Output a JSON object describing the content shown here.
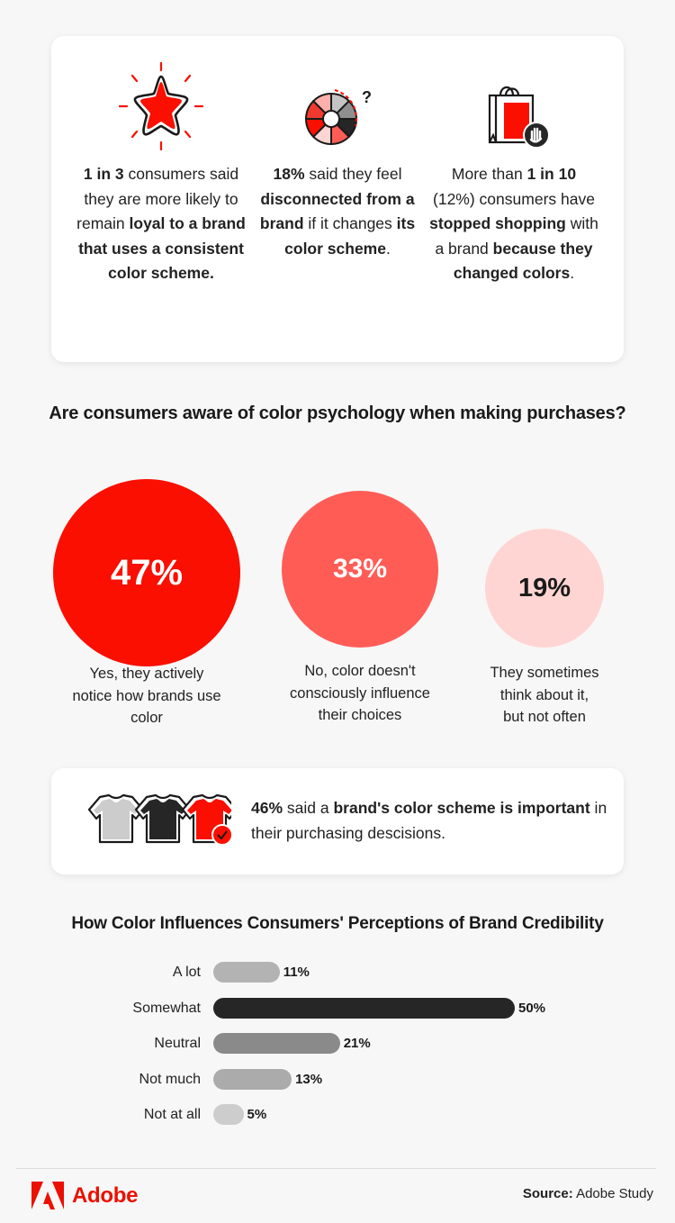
{
  "stats": [
    {
      "icon": "star-icon",
      "segments": [
        {
          "text": "1 in 3",
          "bold": true
        },
        {
          "text": " consumers said they are more likely to remain ",
          "bold": false
        },
        {
          "text": "loyal to a brand that uses a consistent color scheme.",
          "bold": true
        }
      ]
    },
    {
      "icon": "color-wheel-question-icon",
      "segments": [
        {
          "text": "18%",
          "bold": true
        },
        {
          "text": " said they feel ",
          "bold": false
        },
        {
          "text": "disconnected from a brand",
          "bold": true
        },
        {
          "text": " if it changes ",
          "bold": false
        },
        {
          "text": "its color scheme",
          "bold": true
        },
        {
          "text": ".",
          "bold": false
        }
      ]
    },
    {
      "icon": "shopping-bag-stop-icon",
      "segments": [
        {
          "text": "More than ",
          "bold": false
        },
        {
          "text": "1 in 10",
          "bold": true
        },
        {
          "text": " (12%) consumers have ",
          "bold": false
        },
        {
          "text": "stopped shopping",
          "bold": true
        },
        {
          "text": " with a brand ",
          "bold": false
        },
        {
          "text": "because they changed colors",
          "bold": true
        },
        {
          "text": ".",
          "bold": false
        }
      ]
    }
  ],
  "awareness": {
    "title": "Are consumers aware of color psychology when making purchases?",
    "bubbles": [
      {
        "value": "47%",
        "label": "Yes, they actively notice how brands use color",
        "color": "#fa0f00",
        "text_color": "#ffffff"
      },
      {
        "value": "33%",
        "label": "No, color doesn't consciously influence their choices",
        "color": "#ff5c56",
        "text_color": "#ffffff"
      },
      {
        "value": "19%",
        "label": "They sometimes think about it, but not often",
        "color": "#ffd5d3",
        "text_color": "#1a1a1a"
      }
    ]
  },
  "shirt_stat": {
    "icon": "tshirts-check-icon",
    "segments": [
      {
        "text": "46%",
        "bold": true
      },
      {
        "text": " said a ",
        "bold": false
      },
      {
        "text": "brand's color scheme is important",
        "bold": true
      },
      {
        "text": " in their purchasing descisions.",
        "bold": false
      }
    ]
  },
  "chart_data": [
    {
      "type": "pie",
      "title": "Are consumers aware of color psychology when making purchases?",
      "categories": [
        "Yes, they actively notice how brands use color",
        "No, color doesn't consciously influence their choices",
        "They sometimes think about it, but not often"
      ],
      "values": [
        47,
        33,
        19
      ],
      "unit": "%",
      "colors": [
        "#fa0f00",
        "#ff5c56",
        "#ffd5d3"
      ]
    },
    {
      "type": "bar",
      "orientation": "horizontal",
      "title": "How Color Influences Consumers' Perceptions of Brand Credibility",
      "categories": [
        "A lot",
        "Somewhat",
        "Neutral",
        "Not much",
        "Not at all"
      ],
      "values": [
        11,
        50,
        21,
        13,
        5
      ],
      "value_labels": [
        "11%",
        "50%",
        "21%",
        "13%",
        "5%"
      ],
      "colors": [
        "#b3b3b3",
        "#262626",
        "#8a8a8a",
        "#ababab",
        "#cdcdcd"
      ],
      "xlabel": "",
      "ylabel": "",
      "xlim": [
        0,
        50
      ],
      "grid": false,
      "legend": null
    }
  ],
  "credibility": {
    "title": "How Color Influences Consumers' Perceptions of Brand Credibility"
  },
  "footer": {
    "brand": "Adobe",
    "source_label": "Source:",
    "source_value": " Adobe Study",
    "brand_color": "#eb1000"
  }
}
